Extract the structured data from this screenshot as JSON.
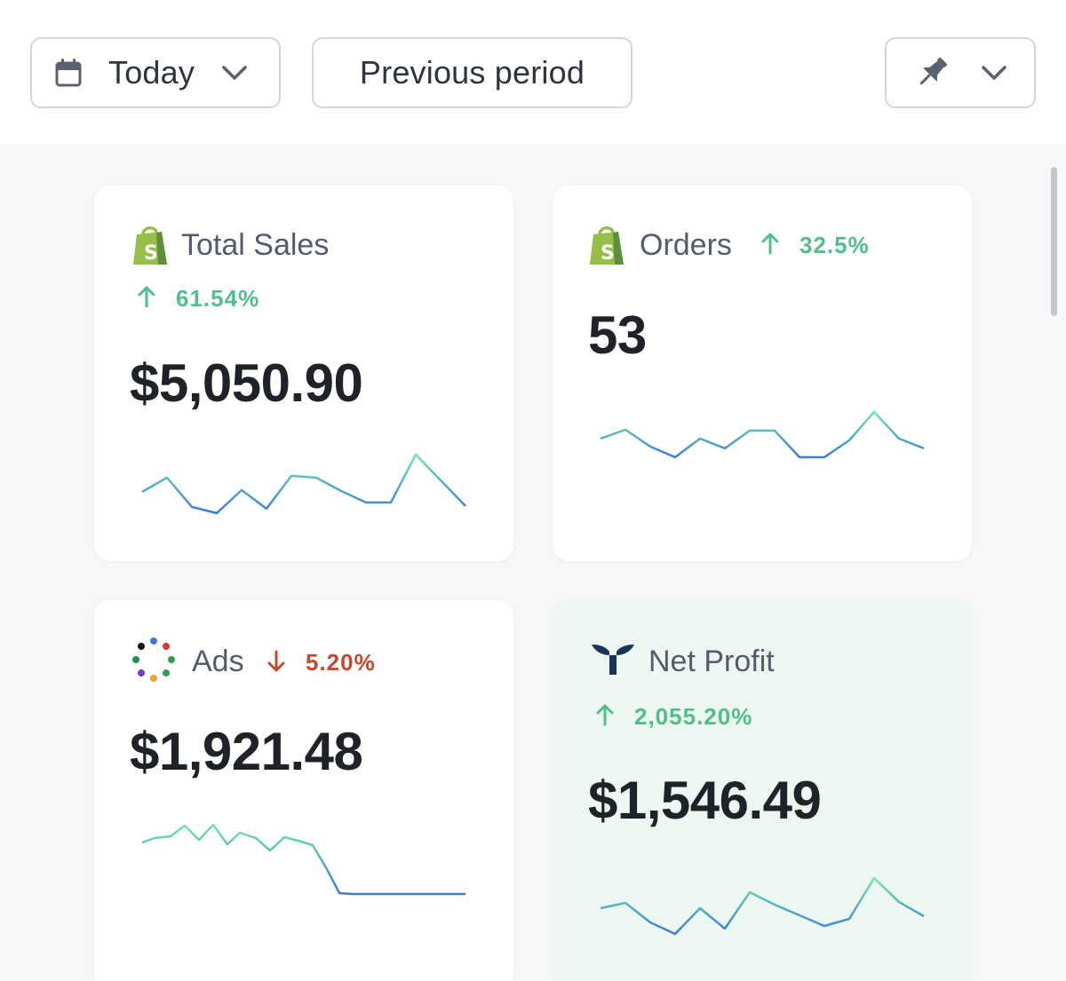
{
  "toolbar": {
    "date_range_label": "Today",
    "compare_label": "Previous period",
    "icons": {
      "calendar": "calendar-icon",
      "chevron": "chevron-down-icon",
      "pin": "pin-icon"
    }
  },
  "cards": {
    "total_sales": {
      "title": "Total Sales",
      "change": "61.54%",
      "direction": "up",
      "value": "$5,050.90",
      "source_icon": "shopify-icon"
    },
    "orders": {
      "title": "Orders",
      "change": "32.5%",
      "direction": "up",
      "value": "53",
      "source_icon": "shopify-icon"
    },
    "ads": {
      "title": "Ads",
      "change": "5.20%",
      "direction": "down",
      "value": "$1,921.48",
      "source_icon": "ads-dots-icon"
    },
    "net_profit": {
      "title": "Net Profit",
      "change": "2,055.20%",
      "direction": "up",
      "value": "$1,546.49",
      "source_icon": "triple-whale-icon"
    }
  },
  "colors": {
    "up": "#4fbf8b",
    "down": "#c5492f",
    "spark_start": "#6fe3a6",
    "spark_end": "#3d7fdc",
    "profit_bg": "#edf7f1"
  }
}
